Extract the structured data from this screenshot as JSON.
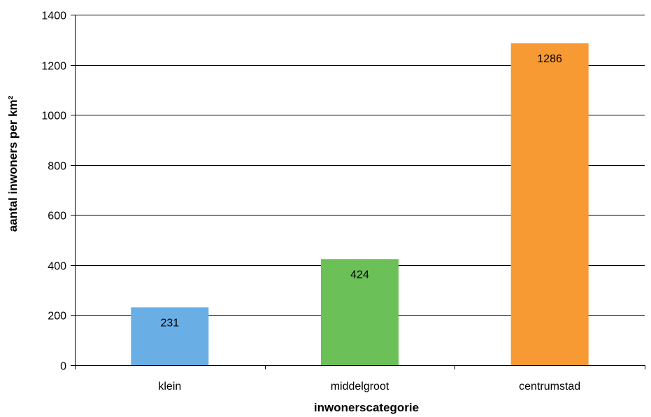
{
  "chart_data": {
    "type": "bar",
    "title": "",
    "xlabel": "inwonerscategorie",
    "ylabel": "aantal inwoners per km²",
    "categories": [
      "klein",
      "middelgroot",
      "centrumstad"
    ],
    "values": [
      231,
      424,
      1286
    ],
    "data_labels": [
      "231",
      "424",
      "1286"
    ],
    "colors": [
      "#6aaee6",
      "#6cc058",
      "#f79a34"
    ],
    "ylim": [
      0,
      1400
    ],
    "yticks": [
      0,
      200,
      400,
      600,
      800,
      1000,
      1200,
      1400
    ],
    "ytick_labels": [
      "0",
      "200",
      "400",
      "600",
      "800",
      "1000",
      "1200",
      "1400"
    ],
    "grid": true,
    "legend": "none"
  }
}
